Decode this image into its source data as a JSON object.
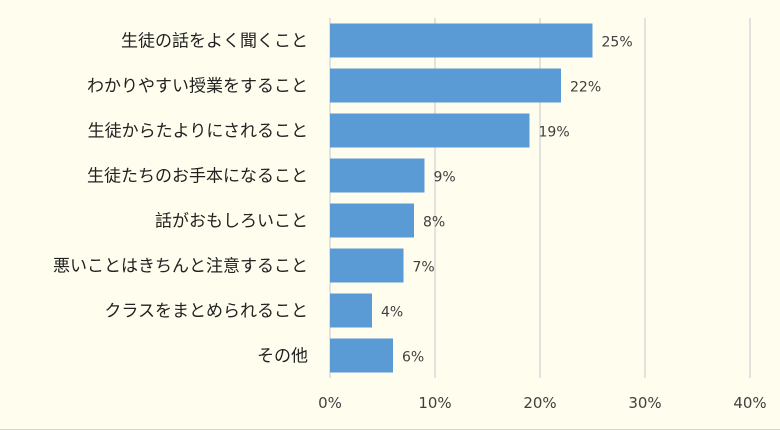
{
  "chart_data": {
    "type": "bar",
    "orientation": "horizontal",
    "categories": [
      "生徒の話をよく聞くこと",
      "わかりやすい授業をすること",
      "生徒からたよりにされること",
      "生徒たちのお手本になること",
      "話がおもしろいこと",
      "悪いことはきちんと注意すること",
      "クラスをまとめられること",
      "その他"
    ],
    "values": [
      25,
      22,
      19,
      9,
      8,
      7,
      4,
      6
    ],
    "data_labels": [
      "25%",
      "22%",
      "19%",
      "9%",
      "8%",
      "7%",
      "4%",
      "6%"
    ],
    "xlim": [
      0,
      40
    ],
    "x_ticks": [
      0,
      10,
      20,
      30,
      40
    ],
    "x_tick_labels": [
      "0%",
      "10%",
      "20%",
      "30%",
      "40%"
    ],
    "title": "",
    "xlabel": "",
    "ylabel": "",
    "grid": "vertical",
    "bar_color": "#5b9bd5",
    "background_color": "#fffdee"
  }
}
